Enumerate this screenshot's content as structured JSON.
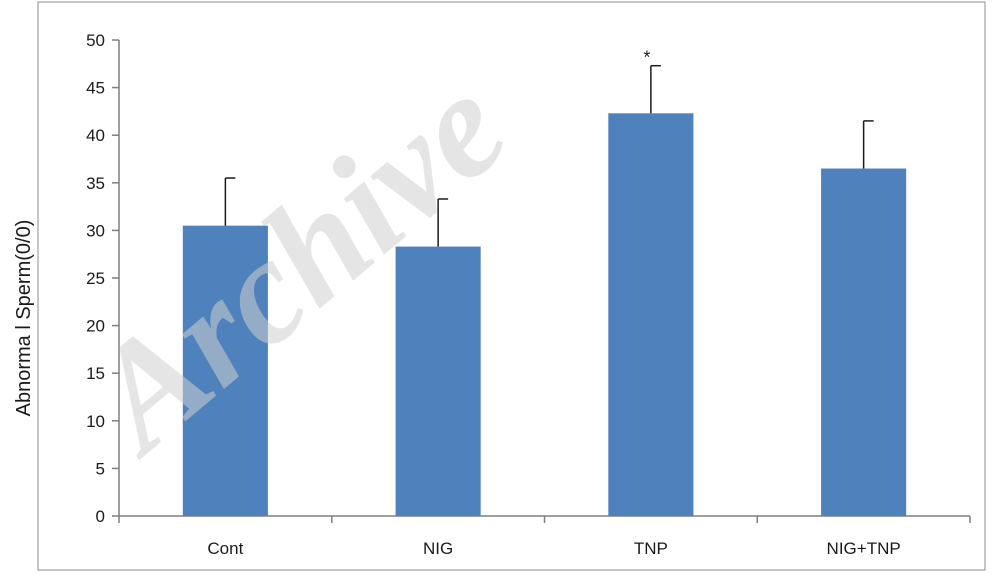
{
  "watermark": "Archive",
  "chart_data": {
    "type": "bar",
    "categories": [
      "Cont",
      "NIG",
      "TNP",
      "NIG+TNP"
    ],
    "values": [
      30.5,
      28.3,
      42.3,
      36.5
    ],
    "errors": [
      5.0,
      5.0,
      5.0,
      5.0
    ],
    "annotations": [
      "",
      "",
      "*",
      ""
    ],
    "ylabel": "Abnorma l Sperm(0/0)",
    "xlabel": "",
    "ylim": [
      0,
      50
    ],
    "yticks": [
      0,
      5,
      10,
      15,
      20,
      25,
      30,
      35,
      40,
      45,
      50
    ],
    "bar_color": "#4f81bd",
    "grid": false,
    "legend": "none"
  }
}
